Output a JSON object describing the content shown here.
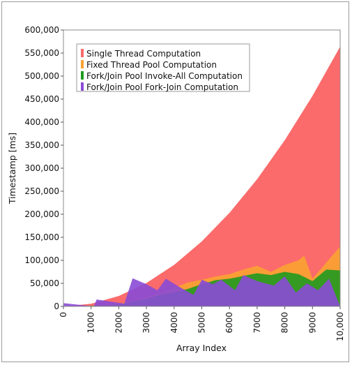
{
  "chart_data": {
    "type": "area",
    "xlabel": "Array Index",
    "ylabel": "Timestamp [ms]",
    "xlim": [
      0,
      10000
    ],
    "ylim": [
      0,
      600000
    ],
    "x_ticks": [
      "0",
      "1000",
      "2000",
      "3000",
      "4000",
      "5000",
      "6000",
      "7000",
      "8000",
      "9000",
      "10,000"
    ],
    "y_ticks": [
      "0",
      "50,000",
      "100,000",
      "150,000",
      "200,000",
      "250,000",
      "300,000",
      "350,000",
      "400,000",
      "450,000",
      "500,000",
      "550,000",
      "600,000"
    ],
    "grid": false,
    "legend_position": "top-left",
    "colors": {
      "single": "#fb6b6b",
      "fixed": "#fba331",
      "invokeall": "#1f9a1f",
      "forkjoin_purple": "#8a4bd6",
      "forkjoin_blue": "#2b5bd9",
      "overlap": "#1b5a8a"
    },
    "series": [
      {
        "name": "Single Thread Computation",
        "color": "#fb6b6b",
        "x": [
          0,
          1000,
          2000,
          3000,
          4000,
          5000,
          6000,
          7000,
          8000,
          9000,
          10000
        ],
        "values": [
          0,
          5600,
          22500,
          50700,
          90200,
          141000,
          203000,
          276000,
          361000,
          457000,
          564000
        ]
      },
      {
        "name": "Fixed Thread Pool Computation",
        "color": "#fba331",
        "x": [
          0,
          1000,
          2000,
          2500,
          3000,
          3500,
          4000,
          4500,
          5000,
          5500,
          6000,
          6500,
          7000,
          7500,
          8000,
          8500,
          8700,
          9000,
          9500,
          10000
        ],
        "values": [
          0,
          1000,
          5000,
          12000,
          20000,
          30000,
          40000,
          52000,
          58000,
          65000,
          70000,
          80000,
          88000,
          75000,
          90000,
          100000,
          110000,
          60000,
          95000,
          130000
        ]
      },
      {
        "name": "Fork/Join Pool Invoke-All Computation",
        "color": "#1f9a1f",
        "x": [
          0,
          1000,
          2000,
          2500,
          3000,
          3500,
          4000,
          4500,
          5000,
          5500,
          6000,
          6500,
          7000,
          7500,
          8000,
          8500,
          9000,
          9500,
          10000
        ],
        "values": [
          0,
          1000,
          4000,
          10000,
          16000,
          25000,
          30000,
          38000,
          48000,
          57000,
          60000,
          66000,
          72000,
          68000,
          75000,
          70000,
          55000,
          80000,
          78000
        ]
      },
      {
        "name": "Fork/Join Pool Fork-Join Computation",
        "color": "#8a4bd6",
        "x": [
          0,
          1100,
          1200,
          2200,
          2500,
          3000,
          3400,
          3700,
          4200,
          4700,
          5000,
          5400,
          5700,
          6200,
          6500,
          7000,
          7600,
          8000,
          8400,
          8800,
          9200,
          9600,
          10000
        ],
        "values": [
          7000,
          0,
          15000,
          6000,
          61000,
          48000,
          35000,
          60000,
          42000,
          25000,
          58000,
          48000,
          58000,
          35000,
          68000,
          55000,
          45000,
          65000,
          30000,
          50000,
          35000,
          60000,
          0
        ]
      }
    ]
  }
}
